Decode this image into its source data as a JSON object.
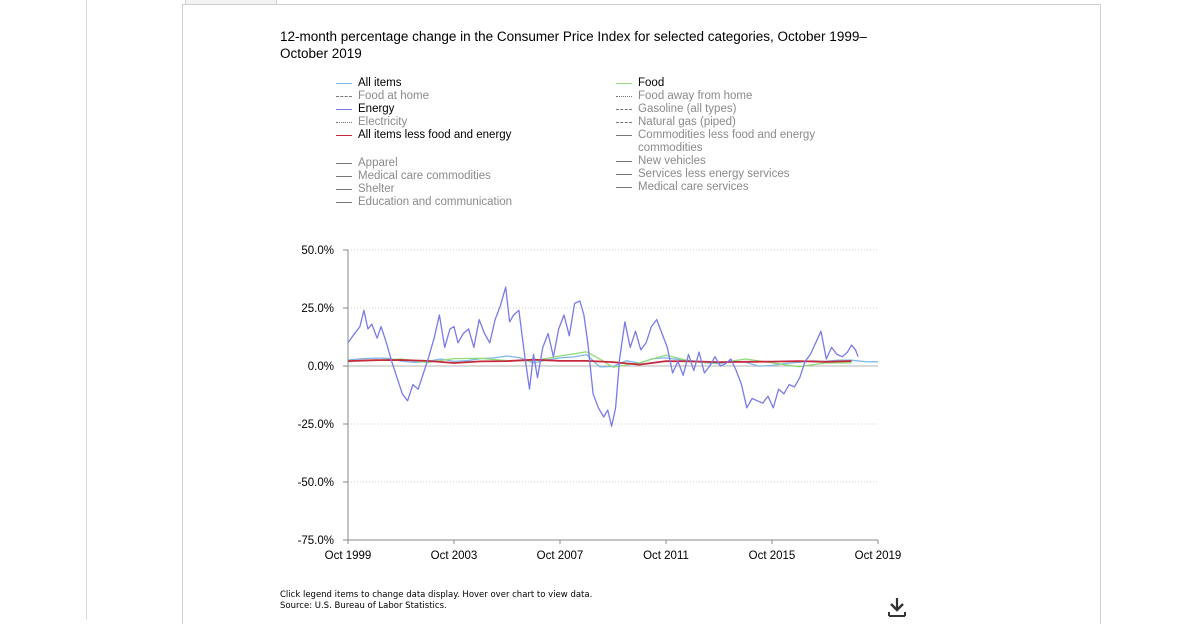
{
  "chart_data": {
    "type": "line",
    "title": "12-month percentage change in the Consumer Price Index for selected categories, October 1999–October 2019",
    "ylim": [
      -75,
      50
    ],
    "yticks": [
      "50.0%",
      "25.0%",
      "0.0%",
      "-25.0%",
      "-50.0%",
      "-75.0%"
    ],
    "xlim": [
      1999.75,
      2019.75
    ],
    "xticks": [
      "Oct 1999",
      "Oct 2003",
      "Oct 2007",
      "Oct 2011",
      "Oct 2015",
      "Oct 2019"
    ],
    "grid": "horizontal dotted",
    "legend_position": "top",
    "legend": {
      "col1": [
        {
          "label": "All items",
          "color": "#7fb6e8",
          "dash": "solid",
          "active": true
        },
        {
          "label": "Food at home",
          "color": "#777777",
          "dash": "dashed",
          "active": false
        },
        {
          "label": "Energy",
          "color": "#7a7ae8",
          "dash": "solid",
          "active": true
        },
        {
          "label": "Electricity",
          "color": "#777777",
          "dash": "dotted",
          "active": false
        },
        {
          "label": "All items less food and energy",
          "color": "#c8283c",
          "dash": "solid",
          "active": true
        },
        {
          "gap": true
        },
        {
          "label": "Apparel",
          "color": "#777777",
          "dash": "solid",
          "active": false
        },
        {
          "label": "Medical care commodities",
          "color": "#777777",
          "dash": "solid",
          "active": false
        },
        {
          "label": "Shelter",
          "color": "#777777",
          "dash": "solid",
          "active": false
        },
        {
          "label": "Education and communication",
          "color": "#777777",
          "dash": "solid",
          "active": false
        }
      ],
      "col2": [
        {
          "label": "Food",
          "color": "#8fdc7a",
          "dash": "solid",
          "active": true
        },
        {
          "label": "Food away from home",
          "color": "#777777",
          "dash": "dotted",
          "active": false
        },
        {
          "label": "Gasoline (all types)",
          "color": "#777777",
          "dash": "dashed",
          "active": false
        },
        {
          "label": "Natural gas (piped)",
          "color": "#777777",
          "dash": "dashdot",
          "active": false
        },
        {
          "label": "Commodities less food and energy commodities",
          "color": "#777777",
          "dash": "solid",
          "active": false
        },
        {
          "label": "New vehicles",
          "color": "#777777",
          "dash": "solid",
          "active": false
        },
        {
          "label": "Services less energy services",
          "color": "#777777",
          "dash": "solid",
          "active": false
        },
        {
          "label": "Medical care services",
          "color": "#777777",
          "dash": "solid",
          "active": false
        }
      ]
    },
    "series": [
      {
        "name": "All items",
        "color": "#7fb6e8",
        "x": [
          1999.75,
          2000.25,
          2000.75,
          2001.25,
          2001.75,
          2002.25,
          2002.75,
          2003.25,
          2003.75,
          2004.25,
          2004.75,
          2005.25,
          2005.75,
          2006.25,
          2006.75,
          2007.25,
          2007.75,
          2008.25,
          2008.75,
          2009.25,
          2009.75,
          2010.25,
          2010.75,
          2011.25,
          2011.75,
          2012.25,
          2012.75,
          2013.25,
          2013.75,
          2014.25,
          2014.75,
          2015.25,
          2015.75,
          2016.25,
          2016.75,
          2017.25,
          2017.75,
          2018.25,
          2018.75,
          2019.25,
          2019.75
        ],
        "y": [
          2.6,
          3.1,
          3.4,
          3.3,
          2.1,
          1.6,
          2.0,
          3.0,
          2.0,
          2.3,
          3.2,
          3.5,
          4.3,
          3.5,
          1.3,
          2.6,
          3.5,
          3.9,
          4.9,
          -0.4,
          -0.2,
          2.3,
          1.2,
          3.2,
          3.5,
          2.7,
          2.2,
          1.4,
          1.0,
          2.0,
          1.7,
          -0.1,
          0.2,
          1.1,
          1.6,
          2.2,
          2.0,
          2.5,
          2.5,
          1.9,
          1.8
        ]
      },
      {
        "name": "Food",
        "color": "#8fdc7a",
        "x": [
          1999.75,
          2000.75,
          2001.75,
          2002.75,
          2003.75,
          2004.75,
          2005.75,
          2006.75,
          2007.75,
          2008.75,
          2009.25,
          2009.75,
          2010.75,
          2011.75,
          2012.75,
          2013.75,
          2014.75,
          2015.75,
          2016.75,
          2017.75,
          2018.75
        ],
        "y": [
          2.2,
          2.4,
          3.0,
          1.5,
          3.2,
          3.3,
          2.3,
          2.2,
          4.3,
          6.1,
          3.0,
          -0.5,
          1.4,
          4.7,
          1.8,
          1.3,
          3.0,
          1.4,
          -0.3,
          1.3,
          1.4
        ]
      },
      {
        "name": "All items less food and energy",
        "color": "#c8283c",
        "x": [
          1999.75,
          2000.75,
          2001.75,
          2002.75,
          2003.75,
          2004.75,
          2005.75,
          2006.75,
          2007.75,
          2008.75,
          2009.75,
          2010.75,
          2011.75,
          2012.75,
          2013.75,
          2014.75,
          2015.75,
          2016.75,
          2017.75,
          2018.75
        ],
        "y": [
          2.1,
          2.5,
          2.6,
          2.2,
          1.3,
          2.0,
          2.1,
          2.7,
          2.2,
          2.2,
          1.7,
          0.6,
          2.1,
          2.0,
          1.7,
          1.8,
          1.9,
          2.1,
          1.8,
          2.1
        ]
      },
      {
        "name": "Energy",
        "color": "#7a7ae8",
        "x": [
          1999.75,
          2000.0,
          2000.2,
          2000.35,
          2000.5,
          2000.65,
          2000.85,
          2001.0,
          2001.2,
          2001.4,
          2001.6,
          2001.8,
          2002.0,
          2002.2,
          2002.4,
          2002.6,
          2002.8,
          2003.0,
          2003.2,
          2003.4,
          2003.6,
          2003.75,
          2003.9,
          2004.1,
          2004.3,
          2004.5,
          2004.7,
          2004.9,
          2005.1,
          2005.3,
          2005.5,
          2005.7,
          2005.85,
          2006.0,
          2006.2,
          2006.4,
          2006.6,
          2006.75,
          2006.9,
          2007.1,
          2007.3,
          2007.5,
          2007.7,
          2007.9,
          2008.1,
          2008.3,
          2008.5,
          2008.65,
          2008.8,
          2009.0,
          2009.2,
          2009.4,
          2009.55,
          2009.7,
          2009.85,
          2010.0,
          2010.2,
          2010.4,
          2010.6,
          2010.8,
          2011.0,
          2011.2,
          2011.4,
          2011.6,
          2011.8,
          2012.0,
          2012.2,
          2012.4,
          2012.6,
          2012.8,
          2013.0,
          2013.2,
          2013.4,
          2013.6,
          2013.8,
          2014.0,
          2014.2,
          2014.4,
          2014.6,
          2014.8,
          2015.0,
          2015.2,
          2015.4,
          2015.6,
          2015.8,
          2016.0,
          2016.2,
          2016.4,
          2016.6,
          2016.8,
          2017.0,
          2017.2,
          2017.4,
          2017.6,
          2017.8,
          2018.0,
          2018.2,
          2018.4,
          2018.6,
          2018.75,
          2018.9,
          2019.0
        ],
        "y": [
          10,
          14,
          17,
          24,
          16,
          18,
          12,
          17,
          10,
          2,
          -5,
          -12,
          -15,
          -8,
          -10,
          -3,
          4,
          12,
          22,
          8,
          16,
          17,
          10,
          14,
          16,
          8,
          20,
          14,
          10,
          20,
          26,
          34,
          19,
          22,
          24,
          6,
          -10,
          5,
          -5,
          8,
          14,
          4,
          16,
          22,
          13,
          27,
          28,
          22,
          10,
          -12,
          -18,
          -22,
          -19,
          -26,
          -18,
          3,
          19,
          8,
          15,
          7,
          10,
          17,
          20,
          14,
          8,
          -3,
          2,
          -4,
          5,
          -2,
          6,
          -3,
          0,
          4,
          0,
          1,
          3,
          -2,
          -8,
          -18,
          -14,
          -15,
          -16,
          -13,
          -18,
          -10,
          -12,
          -8,
          -9,
          -5,
          2,
          5,
          10,
          15,
          3,
          8,
          5,
          4,
          6,
          9,
          7,
          4
        ]
      }
    ]
  },
  "footer": {
    "note1": "Click legend items to change data display. Hover over chart to view data.",
    "note2": "Source: U.S. Bureau of Labor Statistics."
  },
  "icons": {
    "download": "download-icon"
  }
}
